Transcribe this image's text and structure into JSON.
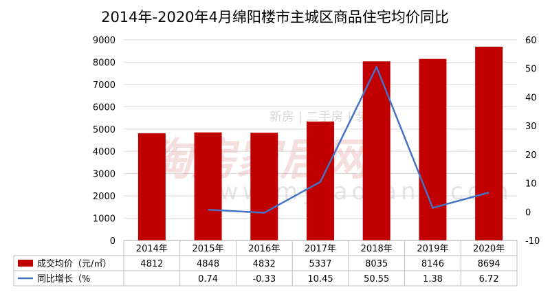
{
  "chart_data": {
    "type": "bar",
    "title": "2014年-2020年4月绵阳楼市主城区商品住宅均价同比",
    "categories": [
      "2014年",
      "2015年",
      "2016年",
      "2017年",
      "2018年",
      "2019年",
      "2020年"
    ],
    "series": [
      {
        "name": "成交均价（元/㎡）",
        "type": "bar",
        "axis": "left",
        "color": "#c00000",
        "values": [
          4812,
          4848,
          4832,
          5337,
          8035,
          8146,
          8694
        ],
        "labels": [
          "4812",
          "4848",
          "4832",
          "5337",
          "8035",
          "8146",
          "8694"
        ]
      },
      {
        "name": "同比增长（%",
        "type": "line",
        "axis": "right",
        "color": "#4472c4",
        "values": [
          null,
          0.74,
          -0.33,
          10.45,
          50.55,
          1.38,
          6.72
        ],
        "labels": [
          "",
          "0.74",
          "-0.33",
          "10.45",
          "50.55",
          "1.38",
          "6.72"
        ]
      }
    ],
    "y_left": {
      "min": 0,
      "max": 9000,
      "step": 1000,
      "ticks": [
        "0",
        "1000",
        "2000",
        "3000",
        "4000",
        "5000",
        "6000",
        "7000",
        "8000",
        "9000"
      ]
    },
    "y_right": {
      "min": -10,
      "max": 60,
      "step": 10,
      "ticks": [
        "-10",
        "0",
        "10",
        "20",
        "30",
        "40",
        "50",
        "60"
      ]
    },
    "grid": true,
    "legend": "data-table"
  },
  "watermark": {
    "brand": "淘房家居网",
    "tags": "新房 | 二手房 | 装修",
    "url": "www.mytaofang.com"
  }
}
